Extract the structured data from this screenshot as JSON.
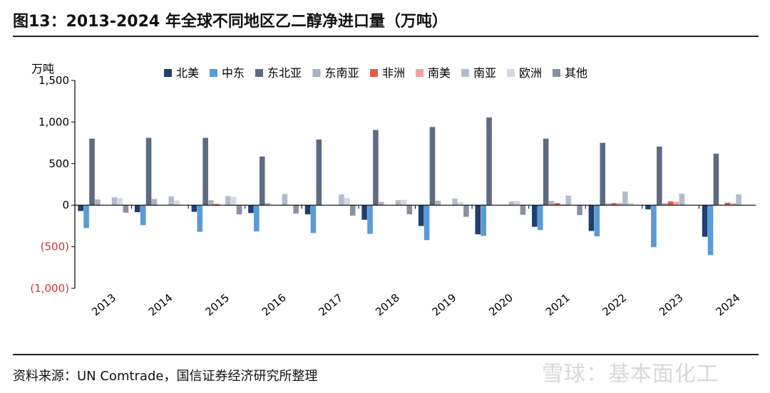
{
  "figure_title": "图13：2013-2024 年全球不同地区乙二醇净进口量（万吨）",
  "source_note": "资料来源：UN Comtrade，国信证券经济研究所整理",
  "watermark": "雪球：基本面化工",
  "chart_data": {
    "type": "bar",
    "title": "",
    "ylabel": "万吨",
    "ylim": [
      -1000,
      1500
    ],
    "yticks": [
      1500,
      1000,
      500,
      0,
      -500,
      -1000
    ],
    "ytick_labels": [
      "1,500",
      "1,000",
      "500",
      "0",
      "(500)",
      "(1,000)"
    ],
    "negative_label_color": "#e03030",
    "legend_position": "top",
    "grid": false,
    "categories": [
      "2013",
      "2014",
      "2015",
      "2016",
      "2017",
      "2018",
      "2019",
      "2020",
      "2021",
      "2022",
      "2023",
      "2024"
    ],
    "series": [
      {
        "name": "北美",
        "color": "#1f3f6e",
        "values": [
          -70,
          -85,
          -80,
          -95,
          -110,
          -175,
          -250,
          -350,
          -260,
          -310,
          -50,
          -380
        ]
      },
      {
        "name": "中东",
        "color": "#5b9bd5",
        "values": [
          -275,
          -240,
          -320,
          -315,
          -335,
          -345,
          -420,
          -370,
          -300,
          -375,
          -505,
          -600
        ]
      },
      {
        "name": "东北亚",
        "color": "#5f6b85",
        "values": [
          800,
          810,
          810,
          585,
          790,
          905,
          940,
          1055,
          800,
          750,
          705,
          620
        ]
      },
      {
        "name": "东南亚",
        "color": "#aab2c2",
        "values": [
          70,
          75,
          60,
          25,
          0,
          40,
          55,
          0,
          50,
          20,
          25,
          0
        ]
      },
      {
        "name": "非洲",
        "color": "#e05a50",
        "values": [
          0,
          0,
          15,
          0,
          0,
          0,
          0,
          0,
          25,
          25,
          45,
          30
        ]
      },
      {
        "name": "南美",
        "color": "#f0a6a0",
        "values": [
          0,
          0,
          0,
          0,
          0,
          0,
          0,
          0,
          10,
          25,
          40,
          25
        ]
      },
      {
        "name": "南亚",
        "color": "#b4bccb",
        "values": [
          95,
          105,
          110,
          135,
          130,
          60,
          80,
          45,
          115,
          165,
          140,
          130
        ]
      },
      {
        "name": "欧洲",
        "color": "#d4d8e2",
        "values": [
          85,
          55,
          100,
          0,
          85,
          65,
          40,
          50,
          0,
          30,
          0,
          0
        ]
      },
      {
        "name": "其他",
        "color": "#8890a0",
        "values": [
          -90,
          0,
          -110,
          -100,
          -125,
          -110,
          -140,
          -115,
          -120,
          0,
          0,
          0
        ]
      }
    ]
  }
}
